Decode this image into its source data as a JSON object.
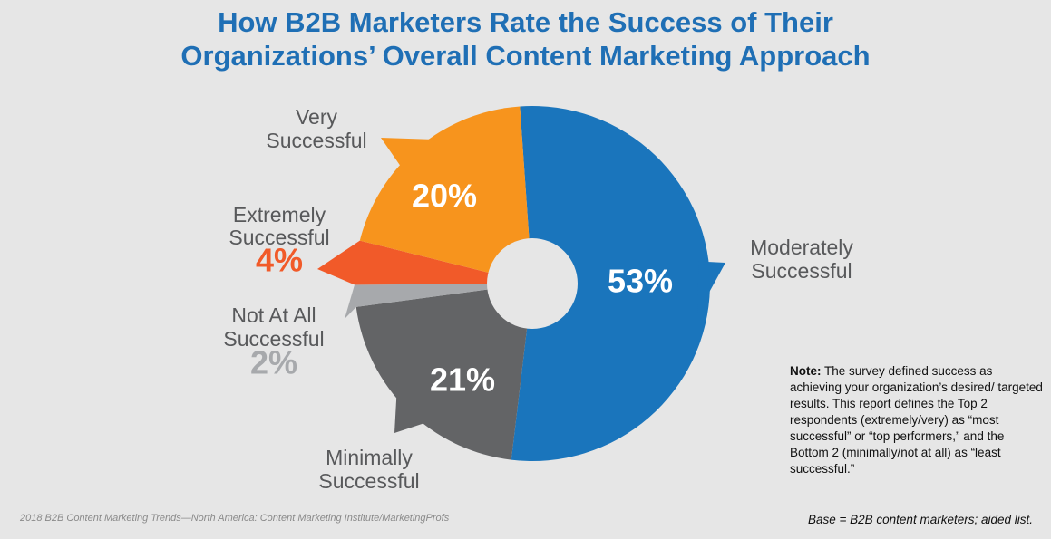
{
  "title": {
    "line1": "How B2B Marketers Rate the Success of Their",
    "line2": "Organizations’ Overall Content Marketing Approach"
  },
  "chart_data": {
    "type": "pie",
    "donut": true,
    "title": "How B2B Marketers Rate the Success of Their Organizations’ Overall Content Marketing Approach",
    "slices": [
      {
        "category_lines": [
          "Moderately",
          "Successful"
        ],
        "value": 53,
        "label": "53%",
        "color": "#1a75bc"
      },
      {
        "category_lines": [
          "Minimally",
          "Successful"
        ],
        "value": 21,
        "label": "21%",
        "color": "#636466"
      },
      {
        "category_lines": [
          "Not At All",
          "Successful"
        ],
        "value": 2,
        "label": "2%",
        "color": "#a7a9ac"
      },
      {
        "category_lines": [
          "Extremely",
          "Successful"
        ],
        "value": 4,
        "label": "4%",
        "color": "#f15a29"
      },
      {
        "category_lines": [
          "Very",
          "Successful"
        ],
        "value": 20,
        "label": "20%",
        "color": "#f7941d"
      }
    ]
  },
  "note": {
    "bold": "Note:",
    "text": " The survey defined success as achieving your organization’s desired/ targeted results. This report defines the Top 2 respondents (extremely/very) as “most successful” or “top performers,” and the Bottom 2 (minimally/not at all) as “least successful.”"
  },
  "footer": {
    "source": "2018 B2B Content Marketing Trends—North America: Content Marketing Institute/MarketingProfs",
    "base": "Base = B2B content marketers; aided list."
  }
}
